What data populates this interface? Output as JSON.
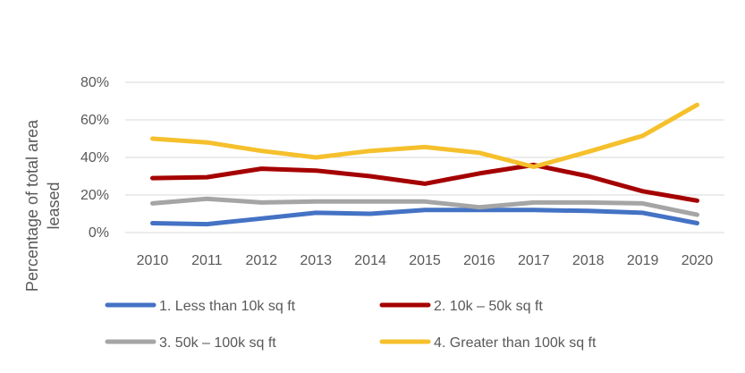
{
  "chart_data": {
    "type": "line",
    "title": "",
    "xlabel": "",
    "ylabel": "Percentage of total area leased",
    "ylabel_lines": [
      "Percentage of total area",
      "leased"
    ],
    "ylim": [
      0,
      80
    ],
    "yticks": [
      "0%",
      "20%",
      "40%",
      "60%",
      "80%"
    ],
    "ytick_values": [
      0,
      20,
      40,
      60,
      80
    ],
    "grid": "horizontal",
    "legend_position": "bottom",
    "categories": [
      "2010",
      "2011",
      "2012",
      "2013",
      "2014",
      "2015",
      "2016",
      "2017",
      "2018",
      "2019",
      "2020"
    ],
    "series": [
      {
        "name": "1. Less than 10k sq ft",
        "color": "#4472c4",
        "values": [
          5,
          4.5,
          7.5,
          10.5,
          10,
          12,
          12,
          12,
          11.5,
          10.5,
          5
        ]
      },
      {
        "name": "2. 10k – 50k sq ft",
        "color": "#a50000",
        "values": [
          29,
          29.5,
          34,
          33,
          30,
          26,
          31.5,
          36,
          30,
          22,
          17
        ]
      },
      {
        "name": "3. 50k – 100k sq ft",
        "color": "#a5a5a5",
        "values": [
          15.5,
          18,
          16,
          16.5,
          16.5,
          16.5,
          13.5,
          16,
          16,
          15.5,
          9.5
        ]
      },
      {
        "name": "4. Greater than 100k sq ft",
        "color": "#f5c02c",
        "values": [
          50,
          48,
          43.5,
          40,
          43.5,
          45.5,
          42.5,
          35,
          43,
          51.5,
          68
        ]
      }
    ]
  }
}
